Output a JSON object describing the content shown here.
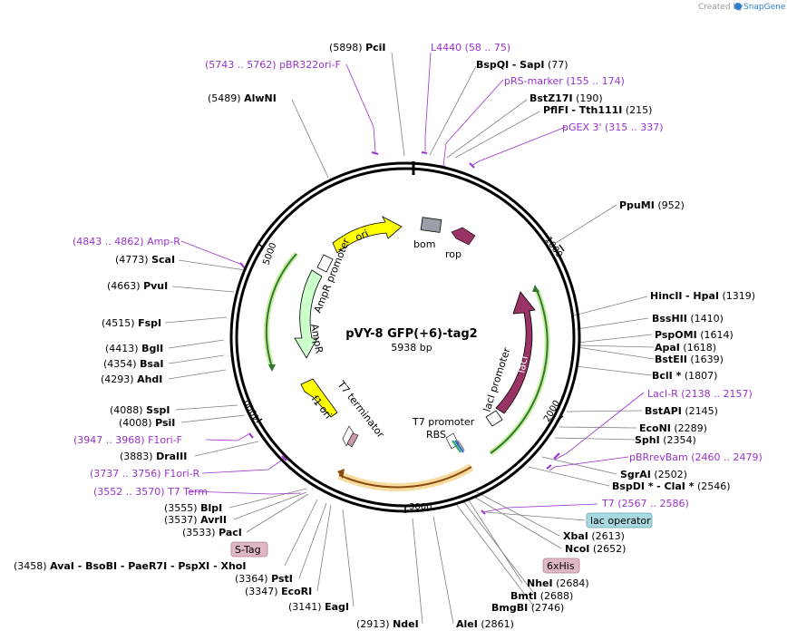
{
  "credit": {
    "prefix": "Created by",
    "brand": "SnapGene"
  },
  "plasmid": {
    "name": "pVY-8 GFP(+6)-tag2",
    "size": "5938 bp"
  },
  "ticks": [
    "1000",
    "2000",
    "3000",
    "4000",
    "5000"
  ],
  "features": {
    "ori_top": "ori",
    "bom": "bom",
    "rop": "rop",
    "ampr_promoter": "AmpR promoter",
    "ampr": "AmpR",
    "t7_terminator": "T7 terminator",
    "f1_ori": "f1 ori",
    "t7_promoter": "T7 promoter",
    "rbs": "RBS",
    "laci_promoter": "lacI promoter",
    "laci": "lacI"
  },
  "boxed": {
    "lac_operator": "lac operator",
    "six_his": "6xHis",
    "s_tag": "S-Tag"
  },
  "colors": {
    "primer": "#9932cc",
    "ori": "#ffff00",
    "ampr": "#ccffcc",
    "laci": "#993366",
    "green": "#33aa33",
    "gray_feature": "#9a9ea8"
  },
  "labels": {
    "pcii": {
      "pos": "(5898)",
      "name": "PciI"
    },
    "l4440": {
      "name": "L4440",
      "range": "(58 .. 75)"
    },
    "pbr322ori": {
      "range": "(5743 .. 5762)",
      "name": "pBR322ori-F"
    },
    "bspqi": {
      "name": "BspQI",
      "alt": "- SapI",
      "pos": "(77)"
    },
    "prsmarker": {
      "name": "pRS-marker",
      "range": "(155 .. 174)"
    },
    "alwni": {
      "pos": "(5489)",
      "name": "AlwNI"
    },
    "bstz17i": {
      "name": "BstZ17I",
      "pos": "(190)"
    },
    "pflfi": {
      "name": "PflFI",
      "alt": "- Tth111I",
      "pos": "(215)"
    },
    "pgex3": {
      "name": "pGEX 3'",
      "range": "(315 .. 337)"
    },
    "ppumi": {
      "name": "PpuMI",
      "pos": "(952)"
    },
    "ampr_primer": {
      "range": "(4843 .. 4862)",
      "name": "Amp-R"
    },
    "scai": {
      "pos": "(4773)",
      "name": "ScaI"
    },
    "pvui": {
      "pos": "(4663)",
      "name": "PvuI"
    },
    "hincii": {
      "name": "HincII",
      "alt": "- HpaI",
      "pos": "(1319)"
    },
    "bsshii": {
      "name": "BssHII",
      "pos": "(1410)"
    },
    "fspi": {
      "pos": "(4515)",
      "name": "FspI"
    },
    "pspomi": {
      "name": "PspOMI",
      "pos": "(1614)"
    },
    "apai": {
      "name": "ApaI",
      "pos": "(1618)"
    },
    "bgli": {
      "pos": "(4413)",
      "name": "BglI"
    },
    "bsteii": {
      "name": "BstEII",
      "pos": "(1639)"
    },
    "bsai": {
      "pos": "(4354)",
      "name": "BsaI"
    },
    "bcli": {
      "name": "BclI *",
      "pos": "(1807)"
    },
    "ahdi": {
      "pos": "(4293)",
      "name": "AhdI"
    },
    "lacir": {
      "name": "LacI-R",
      "range": "(2138 .. 2157)"
    },
    "bstapi": {
      "name": "BstAPI",
      "pos": "(2145)"
    },
    "sspi": {
      "pos": "(4088)",
      "name": "SspI"
    },
    "psii": {
      "pos": "(4008)",
      "name": "PsiI"
    },
    "econi": {
      "name": "EcoNI",
      "pos": "(2289)"
    },
    "f1orif": {
      "range": "(3947 .. 3968)",
      "name": "F1ori-F"
    },
    "sphi": {
      "name": "SphI",
      "pos": "(2354)"
    },
    "draiii": {
      "pos": "(3883)",
      "name": "DraIII"
    },
    "pbrrevbam": {
      "name": "pBRrevBam",
      "range": "(2460 .. 2479)"
    },
    "f1orir": {
      "range": "(3737 .. 3756)",
      "name": "F1ori-R"
    },
    "sgrai": {
      "name": "SgrAI",
      "pos": "(2502)"
    },
    "t7term": {
      "range": "(3552 .. 3570)",
      "name": "T7 Term"
    },
    "bspdi": {
      "name": "BspDI *",
      "alt": "- ClaI *",
      "pos": "(2546)"
    },
    "t7": {
      "name": "T7",
      "range": "(2567 .. 2586)"
    },
    "blpi": {
      "pos": "(3555)",
      "name": "BlpI"
    },
    "avrii": {
      "pos": "(3537)",
      "name": "AvrII"
    },
    "paci": {
      "pos": "(3533)",
      "name": "PacI"
    },
    "xbai": {
      "name": "XbaI",
      "pos": "(2613)"
    },
    "ncoi": {
      "name": "NcoI",
      "pos": "(2652)"
    },
    "avai": {
      "pos": "(3458)",
      "names": "AvaI   - BsoBI   - PaeR7I   - PspXI   - XhoI"
    },
    "psti": {
      "pos": "(3364)",
      "name": "PstI"
    },
    "ecori": {
      "pos": "(3347)",
      "name": "EcoRI"
    },
    "nhei": {
      "name": "NheI",
      "pos": "(2684)"
    },
    "bmti": {
      "name": "BmtI",
      "pos": "(2688)"
    },
    "bmgbi": {
      "name": "BmgBI",
      "pos": "(2746)"
    },
    "eagi": {
      "pos": "(3141)",
      "name": "EagI"
    },
    "ndei": {
      "pos": "(2913)",
      "name": "NdeI"
    },
    "alei": {
      "name": "AleI",
      "pos": "(2861)"
    }
  }
}
